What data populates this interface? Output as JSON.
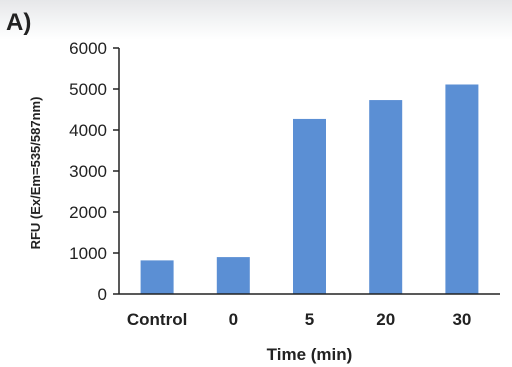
{
  "panel_label": "A)",
  "chart_data": {
    "type": "bar",
    "categories": [
      "Control",
      "0",
      "5",
      "20",
      "30"
    ],
    "values": [
      820,
      900,
      4270,
      4730,
      5110
    ],
    "title": "",
    "xlabel": "Time (min)",
    "ylabel": "RFU (Ex/Em=535/587nm)",
    "ylim": [
      0,
      6000
    ],
    "yticks": [
      0,
      1000,
      2000,
      3000,
      4000,
      5000,
      6000
    ],
    "ytick_labels": [
      "0",
      "1000",
      "2000",
      "3000",
      "4000",
      "5000",
      "6000"
    ],
    "bar_color": "#5b8fd4",
    "axis_color": "#222222",
    "grid": false,
    "legend": "none"
  }
}
